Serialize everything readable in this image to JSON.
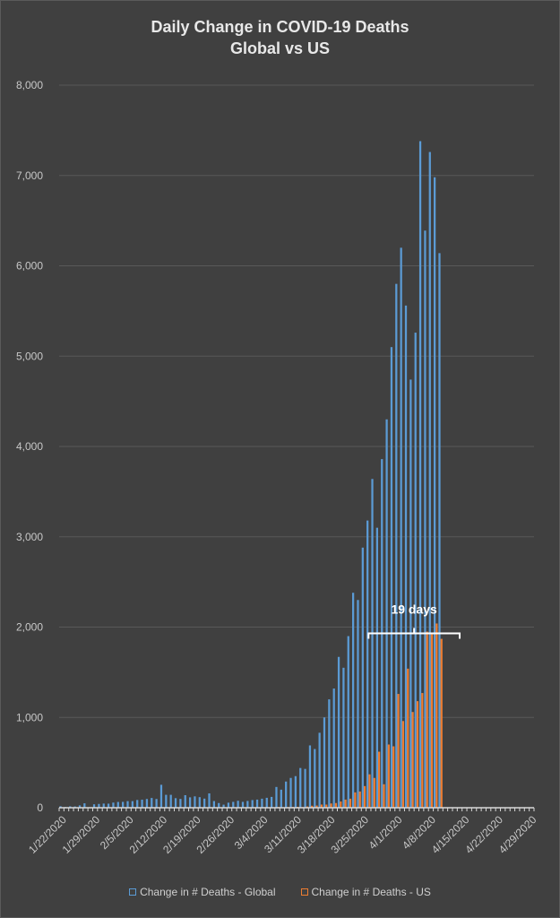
{
  "chart_data": {
    "type": "bar",
    "title": "Daily Change in COVID-19 Deaths",
    "subtitle": "Global vs US",
    "xlabel": "",
    "ylabel": "",
    "ylim": [
      0,
      8000
    ],
    "yticks": [
      "0",
      "1,000",
      "2,000",
      "3,000",
      "4,000",
      "5,000",
      "6,000",
      "7,000",
      "8,000"
    ],
    "grid": true,
    "legend_position": "bottom",
    "x_start": "1/22/2020",
    "x_tick_labels": [
      "1/22/2020",
      "1/29/2020",
      "2/5/2020",
      "2/12/2020",
      "2/19/2020",
      "2/26/2020",
      "3/4/2020",
      "3/11/2020",
      "3/18/2020",
      "3/25/2020",
      "4/1/2020",
      "4/8/2020",
      "4/15/2020",
      "4/22/2020",
      "4/29/2020"
    ],
    "series": [
      {
        "name": "Change in # Deaths - Global",
        "color": "#5b9bd5",
        "values": [
          17,
          8,
          16,
          14,
          26,
          49,
          2,
          38,
          42,
          46,
          45,
          57,
          64,
          65,
          73,
          73,
          86,
          89,
          97,
          108,
          97,
          254,
          143,
          143,
          106,
          98,
          139,
          115,
          126,
          117,
          101,
          159,
          74,
          52,
          34,
          56,
          65,
          77,
          65,
          75,
          85,
          90,
          100,
          110,
          120,
          230,
          200,
          290,
          330,
          350,
          440,
          430,
          690,
          650,
          830,
          1000,
          1200,
          1320,
          1670,
          1550,
          1900,
          2380,
          2300,
          2880,
          3180,
          3640,
          3100,
          3860,
          4300,
          5100,
          5800,
          6200,
          5560,
          4740,
          5260,
          7380,
          6390,
          7260,
          6980,
          6140
        ]
      },
      {
        "name": "Change in # Deaths - US",
        "color": "#ed7d31",
        "values": [
          0,
          0,
          0,
          0,
          0,
          0,
          0,
          0,
          0,
          0,
          0,
          0,
          0,
          0,
          0,
          0,
          0,
          0,
          0,
          0,
          0,
          0,
          0,
          0,
          0,
          0,
          0,
          0,
          0,
          0,
          0,
          0,
          0,
          0,
          0,
          0,
          0,
          0,
          1,
          5,
          2,
          5,
          3,
          4,
          4,
          8,
          3,
          7,
          9,
          10,
          7,
          14,
          22,
          24,
          35,
          35,
          47,
          52,
          69,
          90,
          100,
          170,
          180,
          240,
          370,
          330,
          620,
          260,
          700,
          680,
          1260,
          960,
          1540,
          1060,
          1180,
          1270,
          1950,
          1930,
          2040,
          1870
        ]
      }
    ],
    "annotations": [
      {
        "text": "19 days",
        "x_from": "3/26/2020",
        "x_to": "4/14/2020",
        "y": 1930
      }
    ]
  }
}
